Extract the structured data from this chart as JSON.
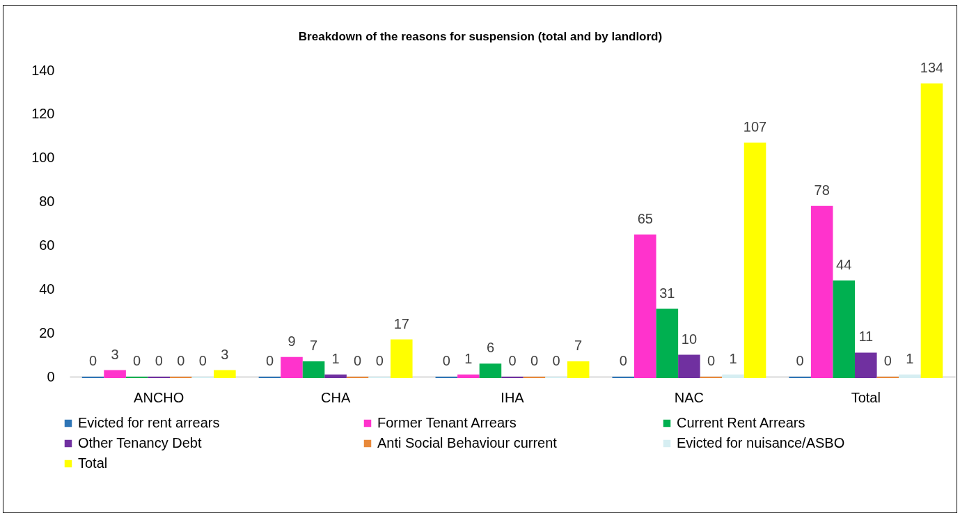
{
  "chart_data": {
    "type": "bar",
    "title": "Breakdown of the reasons for suspension (total and by landlord)",
    "categories": [
      "ANCHO",
      "CHA",
      "IHA",
      "NAC",
      "Total"
    ],
    "series": [
      {
        "name": "Evicted for rent arrears",
        "color": "#2e75b6",
        "values": [
          0,
          0,
          0,
          0,
          0
        ]
      },
      {
        "name": "Former Tenant Arrears",
        "color": "#ff33cc",
        "values": [
          3,
          9,
          1,
          65,
          78
        ]
      },
      {
        "name": "Current Rent Arrears",
        "color": "#00b050",
        "values": [
          0,
          7,
          6,
          31,
          44
        ]
      },
      {
        "name": "Other Tenancy Debt",
        "color": "#7030a0",
        "values": [
          0,
          1,
          0,
          10,
          11
        ]
      },
      {
        "name": "Anti Social Behaviour current",
        "color": "#e8893a",
        "values": [
          0,
          0,
          0,
          0,
          0
        ]
      },
      {
        "name": "Evicted for nuisance/ASBO",
        "color": "#d6eef2",
        "values": [
          0,
          0,
          0,
          1,
          1
        ]
      },
      {
        "name": "Total",
        "color": "#ffff00",
        "values": [
          3,
          17,
          7,
          107,
          134
        ]
      }
    ],
    "ylim": [
      0,
      140
    ],
    "yticks": [
      0,
      20,
      40,
      60,
      80,
      100,
      120,
      140
    ],
    "legend": "bottom",
    "data_labels": true
  }
}
